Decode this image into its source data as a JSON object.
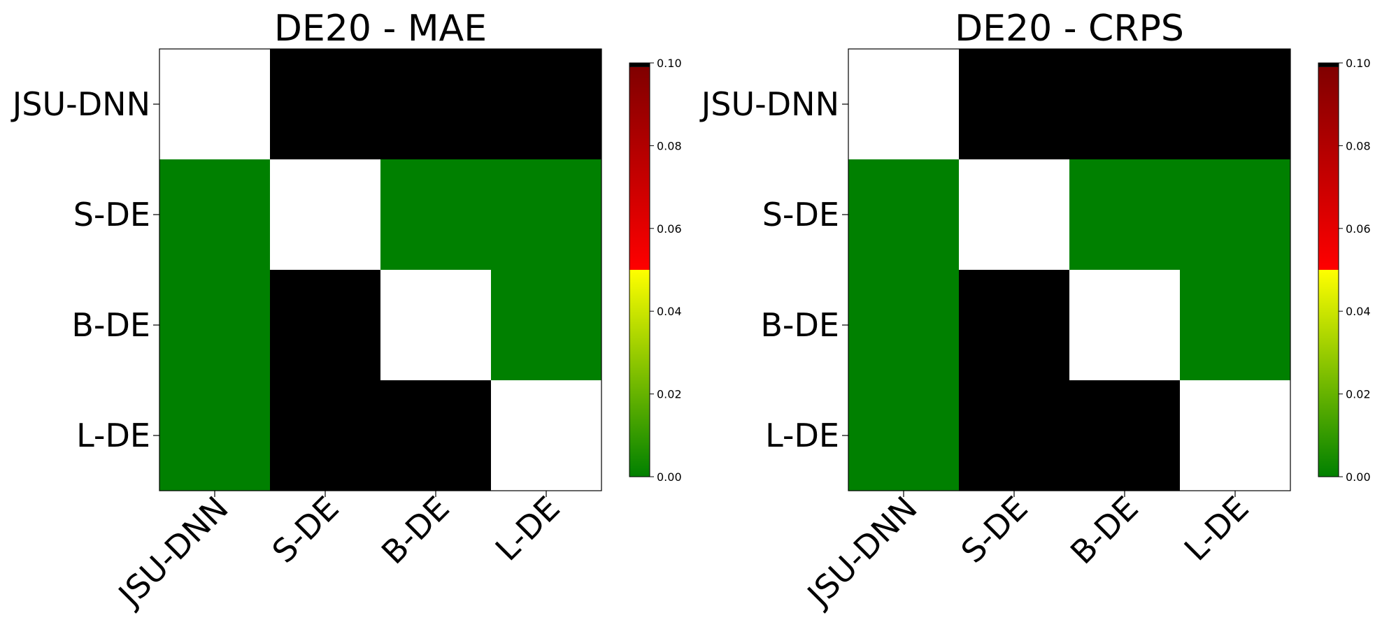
{
  "chart_data": [
    {
      "type": "heatmap",
      "title": "DE20 - MAE",
      "row_labels": [
        "JSU-DNN",
        "S-DE",
        "B-DE",
        "L-DE"
      ],
      "col_labels": [
        "JSU-DNN",
        "S-DE",
        "B-DE",
        "L-DE"
      ],
      "values": [
        [
          null,
          1.0,
          1.0,
          1.0
        ],
        [
          0.0,
          null,
          0.0,
          0.0
        ],
        [
          0.0,
          1.0,
          null,
          0.0
        ],
        [
          0.0,
          1.0,
          1.0,
          null
        ]
      ],
      "colorbar": {
        "min": 0.0,
        "max": 0.1,
        "ticks": [
          "0.00",
          "0.02",
          "0.04",
          "0.06",
          "0.08",
          "0.10"
        ]
      },
      "grid": false
    },
    {
      "type": "heatmap",
      "title": "DE20 - CRPS",
      "row_labels": [
        "JSU-DNN",
        "S-DE",
        "B-DE",
        "L-DE"
      ],
      "col_labels": [
        "JSU-DNN",
        "S-DE",
        "B-DE",
        "L-DE"
      ],
      "values": [
        [
          null,
          1.0,
          1.0,
          1.0
        ],
        [
          0.0,
          null,
          0.0,
          0.0
        ],
        [
          0.0,
          1.0,
          null,
          0.0
        ],
        [
          0.0,
          1.0,
          1.0,
          null
        ]
      ],
      "colorbar": {
        "min": 0.0,
        "max": 0.1,
        "ticks": [
          "0.00",
          "0.02",
          "0.04",
          "0.06",
          "0.08",
          "0.10"
        ]
      },
      "grid": false
    }
  ],
  "colors": {
    "significant": "#008000",
    "not_significant": "#000000",
    "diagonal": "#ffffff",
    "colormap_stops": [
      "#008000",
      "#ffff00",
      "#ff0000",
      "#800000",
      "#000000"
    ]
  }
}
